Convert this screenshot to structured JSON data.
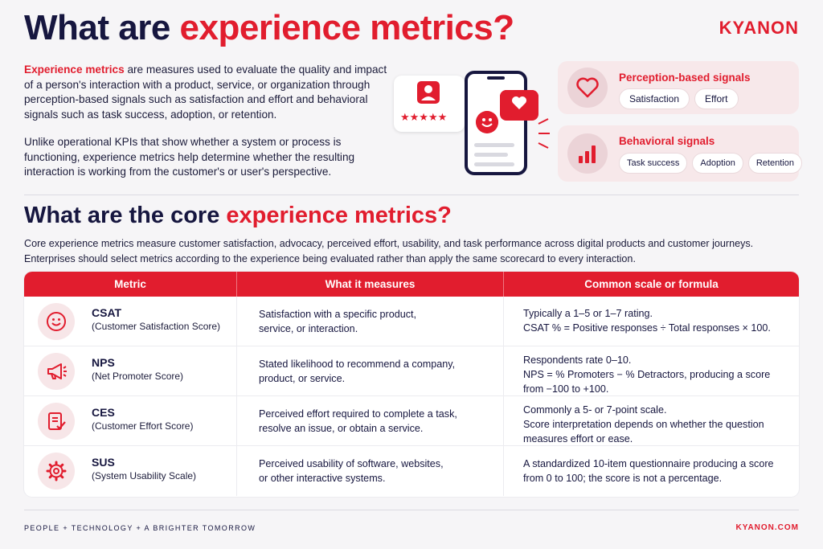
{
  "header": {
    "title_part1": "What are ",
    "title_part2": "experience metrics?",
    "logo": "KYANON"
  },
  "intro": {
    "p1_highlight": "Experience metrics",
    "p1_lines": [
      " are measures used to evaluate the quality and impact",
      "of a person's interaction with a product, service, or organization through",
      "perception-based signals such as satisfaction and effort and behavioral",
      "signals such as task success, adoption, or retention."
    ],
    "p2_lines": [
      "Unlike operational KPIs that show whether a system or process is",
      "functioning, experience metrics help determine whether the resulting",
      "interaction is working from the customer's or user's perspective."
    ]
  },
  "signals": {
    "perception": {
      "title": "Perception-based signals",
      "icon": "heart-icon",
      "pills": [
        "Satisfaction",
        "Effort"
      ]
    },
    "behavioral": {
      "title": "Behavioral signals",
      "icon": "bar-chart-icon",
      "pills": [
        "Task success",
        "Adoption",
        "Retention"
      ]
    }
  },
  "section2": {
    "title_part1": "What are the core ",
    "title_part2": "experience metrics?",
    "desc_lines": [
      "Core experience metrics measure customer satisfaction, advocacy, perceived effort, usability, and task performance across digital products and customer journeys.",
      "Enterprises should select metrics according to the experience being evaluated rather than apply the same scorecard to every interaction."
    ]
  },
  "table": {
    "headers": [
      "Metric",
      "What it measures",
      "Common scale or formula"
    ],
    "rows": [
      {
        "abbr": "CSAT",
        "full": "(Customer Satisfaction Score)",
        "icon": "smiley-icon",
        "measures": [
          "Satisfaction with a specific product,",
          "service, or interaction."
        ],
        "scale": [
          "Typically a 1–5 or 1–7 rating.",
          "CSAT % = Positive responses ÷ Total responses × 100."
        ]
      },
      {
        "abbr": "NPS",
        "full": "(Net Promoter Score)",
        "icon": "megaphone-icon",
        "measures": [
          "Stated likelihood to recommend a company,",
          "product, or service."
        ],
        "scale": [
          "Respondents rate 0–10.",
          "NPS = % Promoters − % Detractors, producing a score",
          "from −100 to +100."
        ]
      },
      {
        "abbr": "CES",
        "full": "(Customer Effort Score)",
        "icon": "form-check-icon",
        "measures": [
          "Perceived effort required to complete a task,",
          "resolve an issue, or obtain a service."
        ],
        "scale": [
          "Commonly a 5- or 7-point scale.",
          "Score interpretation depends on whether the question",
          "measures effort or ease."
        ]
      },
      {
        "abbr": "SUS",
        "full": "(System Usability Scale)",
        "icon": "gear-icon",
        "measures": [
          "Perceived usability of software, websites,",
          "or other interactive systems."
        ],
        "scale": [
          "A standardized 10-item questionnaire producing a score",
          "from 0 to 100; the score is not a percentage."
        ]
      }
    ]
  },
  "footer": {
    "tagline": "PEOPLE  +  TECHNOLOGY  +  A BRIGHTER TOMORROW",
    "site": "KYANON.COM"
  },
  "colors": {
    "accent": "#e11d2e",
    "navy": "#16163f",
    "background": "#f6f5f7"
  }
}
